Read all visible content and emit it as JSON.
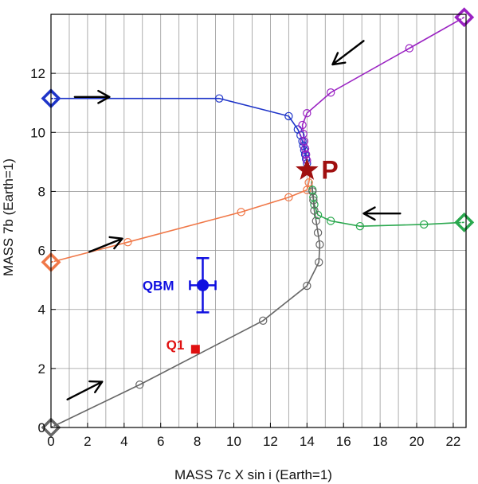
{
  "chart_data": {
    "type": "scatter",
    "xlabel": "MASS 7c X sin i (Earth=1)",
    "ylabel": "MASS 7b (Earth=1)",
    "xlim": [
      0,
      22.7
    ],
    "ylim": [
      0,
      14
    ],
    "xticks": [
      0,
      2,
      4,
      6,
      8,
      10,
      12,
      14,
      16,
      18,
      20,
      22
    ],
    "yticks": [
      0,
      2,
      4,
      6,
      8,
      10,
      12
    ],
    "xgrid": [
      0,
      1,
      2,
      3,
      4,
      5,
      6,
      7,
      8,
      9,
      10,
      11,
      12,
      13,
      14,
      15,
      16,
      17,
      18,
      19,
      20,
      21,
      22
    ],
    "ygrid": [
      0,
      2,
      4,
      6,
      8,
      10,
      12
    ],
    "grid": true,
    "series": [
      {
        "name": "blue-track",
        "color": "#1f35c9",
        "start": [
          0,
          11.15
        ],
        "points": [
          [
            0,
            11.15
          ],
          [
            9.2,
            11.15
          ],
          [
            13.0,
            10.55
          ],
          [
            13.5,
            10.1
          ],
          [
            13.65,
            9.9
          ],
          [
            13.75,
            9.7
          ],
          [
            13.8,
            9.55
          ],
          [
            13.85,
            9.4
          ],
          [
            13.9,
            9.25
          ],
          [
            13.95,
            9.1
          ],
          [
            14.0,
            8.95
          ]
        ],
        "markers": [
          [
            9.2,
            11.15
          ],
          [
            13.0,
            10.55
          ],
          [
            13.5,
            10.1
          ],
          [
            13.65,
            9.9
          ],
          [
            13.75,
            9.7
          ],
          [
            13.8,
            9.55
          ],
          [
            13.85,
            9.4
          ],
          [
            13.9,
            9.25
          ],
          [
            13.95,
            9.1
          ],
          [
            14.0,
            8.95
          ]
        ]
      },
      {
        "name": "purple-track",
        "color": "#9a22c2",
        "start": [
          22.6,
          13.9
        ],
        "points": [
          [
            22.6,
            13.9
          ],
          [
            19.6,
            12.85
          ],
          [
            15.3,
            11.35
          ],
          [
            14.0,
            10.65
          ],
          [
            13.75,
            10.25
          ],
          [
            13.8,
            9.95
          ],
          [
            13.85,
            9.7
          ],
          [
            13.9,
            9.45
          ],
          [
            13.95,
            9.25
          ],
          [
            14.0,
            9.05
          ],
          [
            14.05,
            8.9
          ]
        ],
        "markers": [
          [
            19.6,
            12.85
          ],
          [
            15.3,
            11.35
          ],
          [
            14.0,
            10.65
          ],
          [
            13.75,
            10.25
          ],
          [
            13.8,
            9.95
          ],
          [
            13.85,
            9.7
          ],
          [
            13.9,
            9.45
          ],
          [
            13.95,
            9.25
          ],
          [
            14.0,
            9.05
          ]
        ]
      },
      {
        "name": "orange-track",
        "color": "#f07848",
        "start": [
          0,
          5.6
        ],
        "points": [
          [
            0,
            5.6
          ],
          [
            4.2,
            6.28
          ],
          [
            10.4,
            7.3
          ],
          [
            13.0,
            7.8
          ],
          [
            14.0,
            8.05
          ],
          [
            14.1,
            8.3
          ],
          [
            14.15,
            8.5
          ]
        ],
        "markers": [
          [
            4.2,
            6.28
          ],
          [
            10.4,
            7.3
          ],
          [
            13.0,
            7.8
          ],
          [
            14.0,
            8.05
          ],
          [
            14.1,
            8.3
          ]
        ]
      },
      {
        "name": "green-track",
        "color": "#2aa84e",
        "start": [
          22.6,
          6.95
        ],
        "points": [
          [
            22.6,
            6.95
          ],
          [
            20.4,
            6.88
          ],
          [
            16.9,
            6.82
          ],
          [
            15.3,
            7.0
          ],
          [
            14.6,
            7.2
          ],
          [
            14.4,
            7.55
          ],
          [
            14.35,
            7.8
          ],
          [
            14.3,
            8.05
          ],
          [
            14.25,
            8.35
          ]
        ],
        "markers": [
          [
            20.4,
            6.88
          ],
          [
            16.9,
            6.82
          ],
          [
            15.3,
            7.0
          ],
          [
            14.6,
            7.2
          ],
          [
            14.4,
            7.55
          ],
          [
            14.35,
            7.8
          ],
          [
            14.3,
            8.05
          ]
        ]
      },
      {
        "name": "gray-track",
        "color": "#666666",
        "start": [
          0,
          0
        ],
        "points": [
          [
            0,
            0
          ],
          [
            4.85,
            1.45
          ],
          [
            11.6,
            3.62
          ],
          [
            14.0,
            4.8
          ],
          [
            14.65,
            5.6
          ],
          [
            14.7,
            6.2
          ],
          [
            14.6,
            6.6
          ],
          [
            14.5,
            7.0
          ],
          [
            14.4,
            7.35
          ],
          [
            14.35,
            7.7
          ],
          [
            14.3,
            8.0
          ],
          [
            14.25,
            8.3
          ]
        ],
        "markers": [
          [
            4.85,
            1.45
          ],
          [
            11.6,
            3.62
          ],
          [
            14.0,
            4.8
          ],
          [
            14.65,
            5.6
          ],
          [
            14.7,
            6.2
          ],
          [
            14.6,
            6.6
          ],
          [
            14.5,
            7.0
          ],
          [
            14.4,
            7.35
          ],
          [
            14.35,
            7.7
          ],
          [
            14.3,
            8.0
          ]
        ]
      }
    ],
    "arrows": [
      {
        "name": "arrow-blue",
        "from": [
          1.3,
          11.2
        ],
        "to": [
          3.2,
          11.2
        ],
        "color": "#000000"
      },
      {
        "name": "arrow-purple",
        "from": [
          17.1,
          13.1
        ],
        "to": [
          15.4,
          12.3
        ],
        "color": "#000000"
      },
      {
        "name": "arrow-orange",
        "from": [
          2.1,
          5.95
        ],
        "to": [
          3.9,
          6.4
        ],
        "color": "#000000"
      },
      {
        "name": "arrow-green",
        "from": [
          19.1,
          7.25
        ],
        "to": [
          17.1,
          7.25
        ],
        "color": "#000000"
      },
      {
        "name": "arrow-gray",
        "from": [
          0.9,
          0.95
        ],
        "to": [
          2.8,
          1.55
        ],
        "color": "#000000"
      }
    ],
    "annotations": [
      {
        "name": "planet-p",
        "label": "P",
        "x": 14.0,
        "y": 8.72,
        "color": "#a01010",
        "marker": "star"
      },
      {
        "name": "qbm",
        "label": "QBM",
        "x": 8.3,
        "y": 4.82,
        "xerr": 0.7,
        "yerr": 0.92,
        "color": "#1010e0",
        "marker": "circle"
      },
      {
        "name": "q1",
        "label": "Q1",
        "x": 7.9,
        "y": 2.65,
        "color": "#e01010",
        "marker": "square"
      }
    ]
  }
}
